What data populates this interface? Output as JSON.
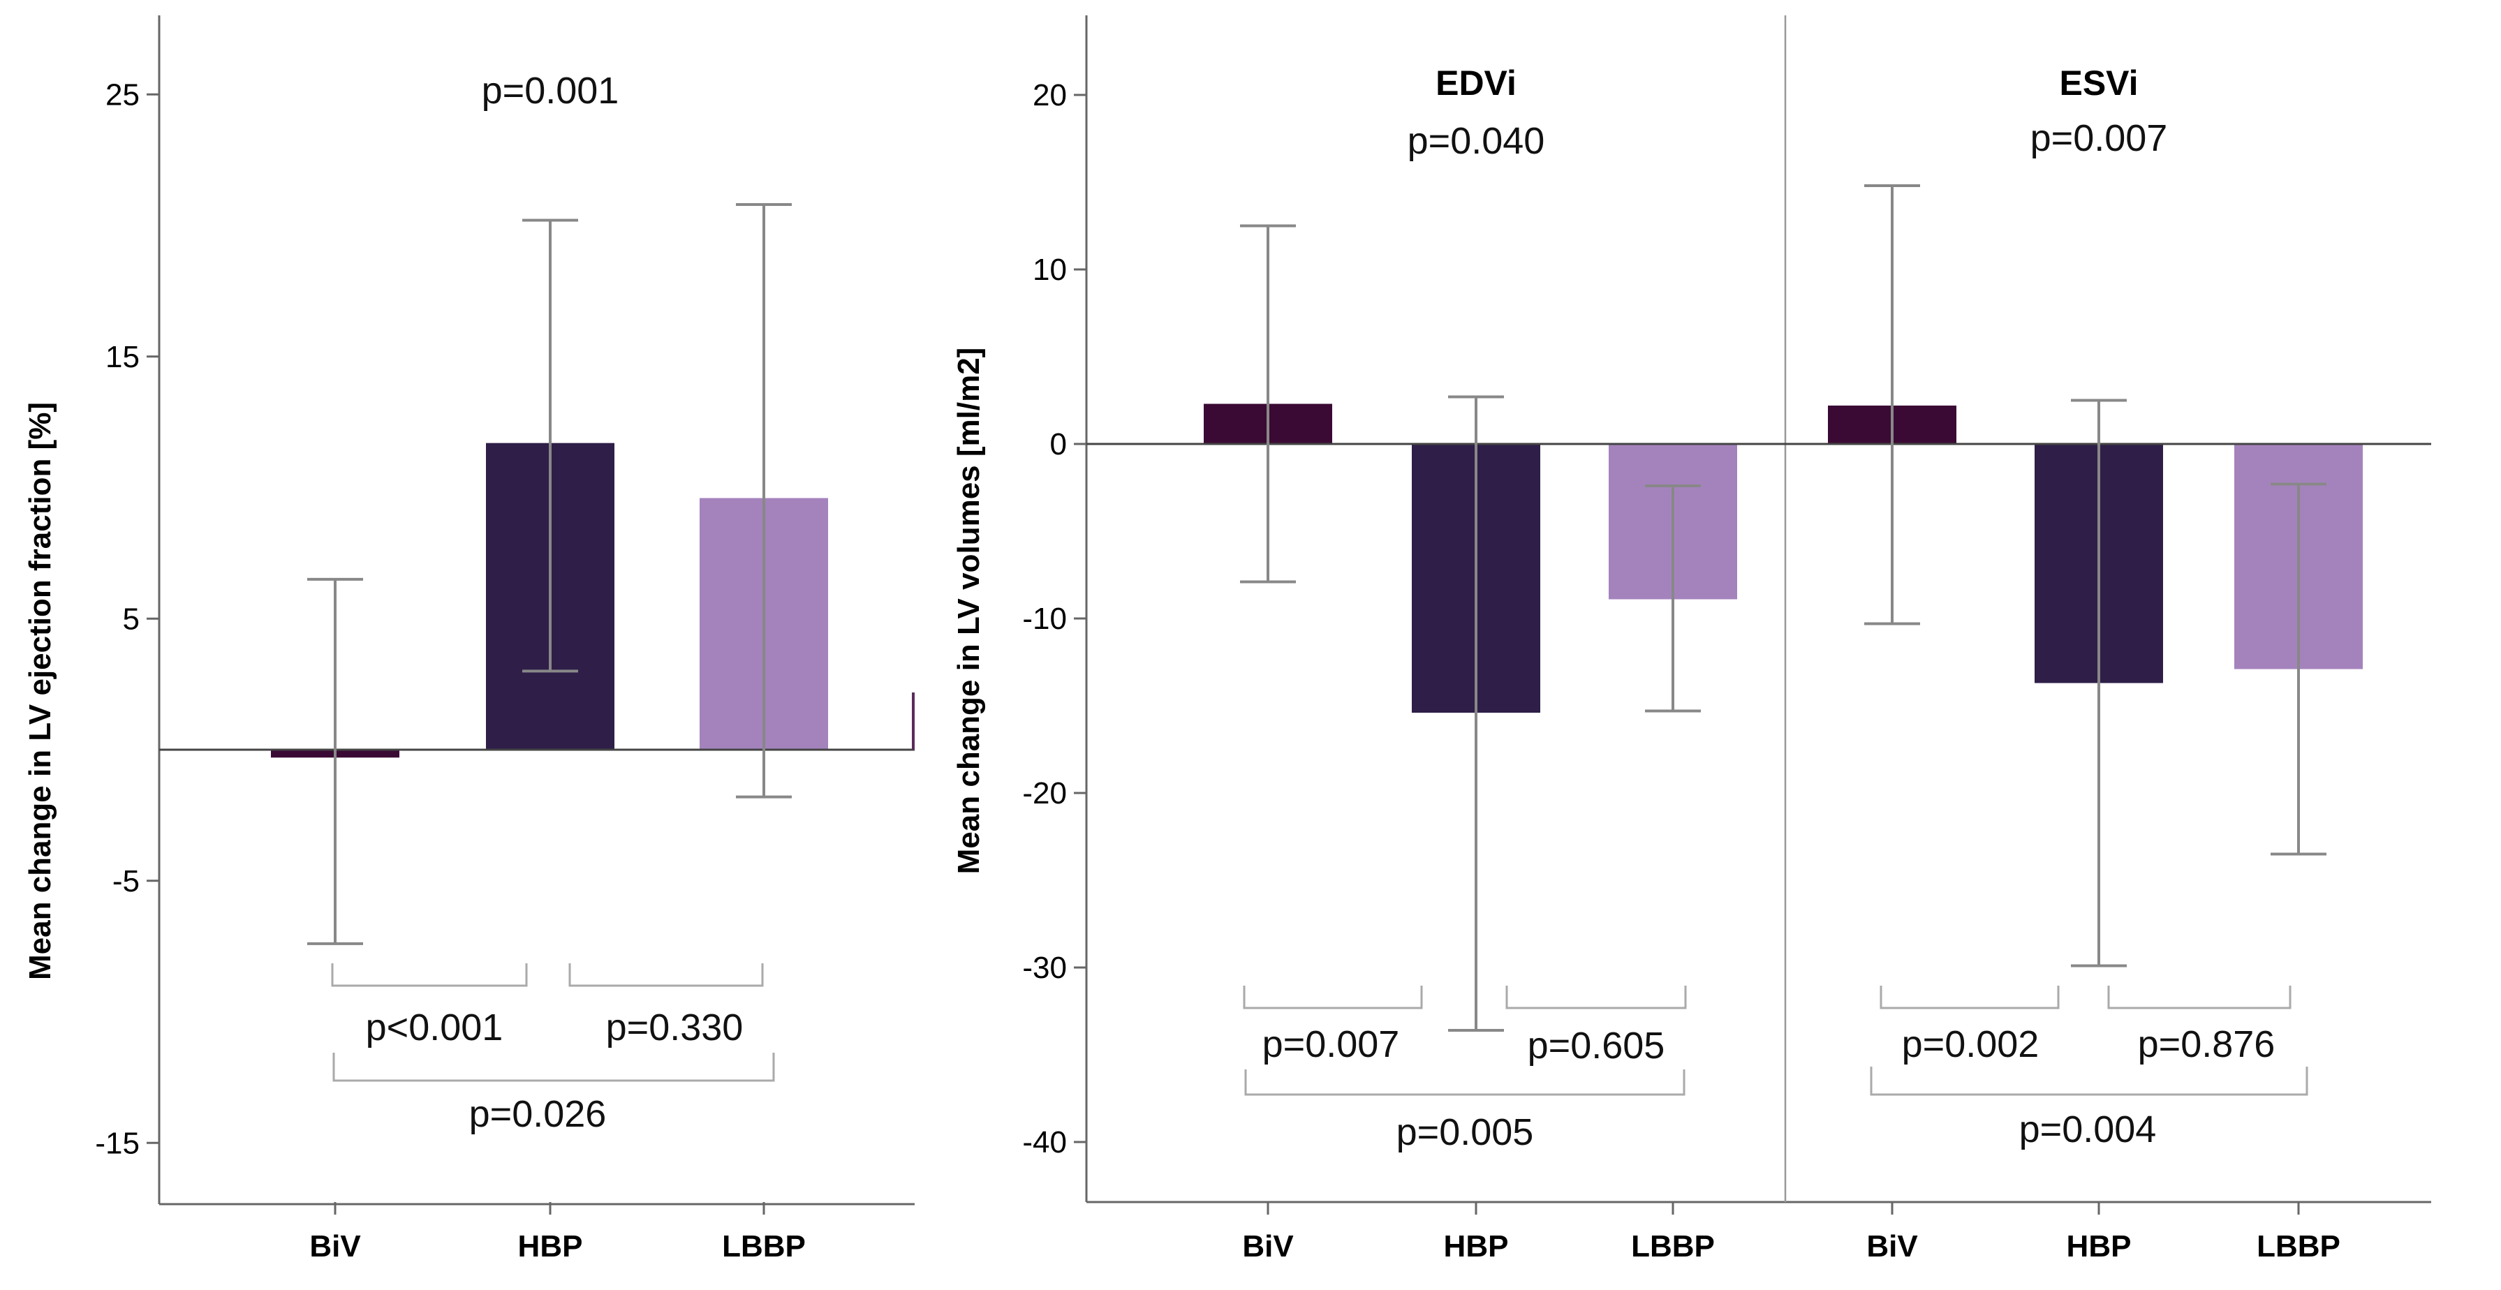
{
  "chart_data": [
    {
      "type": "bar",
      "categories": [
        "BiV",
        "HBP",
        "LBBP"
      ],
      "values": [
        -0.3,
        11.7,
        9.6
      ],
      "error_bars": [
        [
          -7.4,
          6.5
        ],
        [
          3.0,
          20.2
        ],
        [
          -1.8,
          20.8
        ]
      ],
      "colors": [
        "#3a0a34",
        "#2e1e48",
        "#a483bd"
      ],
      "ylabel": "Mean change in LV ejection fraction [%]",
      "ylim": [
        -17,
        27
      ],
      "yticks": [
        -15,
        -5,
        5,
        15,
        25
      ],
      "yticklabels": [
        "-15",
        "-5",
        "5",
        "15",
        "25"
      ],
      "annotations": {
        "overall": "p=0.001",
        "brackets": [
          {
            "label": "p<0.001"
          },
          {
            "label": "p=0.330"
          },
          {
            "label": "p=0.026"
          }
        ]
      }
    },
    {
      "type": "bar",
      "ylabel": "Mean change in LV volumes [ml/m2]",
      "ylim": [
        -43,
        23
      ],
      "yticks": [
        -40,
        -30,
        -20,
        -10,
        0,
        10,
        20
      ],
      "yticklabels": [
        "-40",
        "-30",
        "-20",
        "-10",
        "0",
        "10",
        "20"
      ],
      "colors": [
        "#3a0a34",
        "#2e1e48",
        "#a483bd"
      ],
      "panels": [
        {
          "title": "EDVi",
          "categories": [
            "BiV",
            "HBP",
            "LBBP"
          ],
          "values": [
            2.3,
            -15.4,
            -8.9
          ],
          "error_bars": [
            [
              -7.9,
              12.5
            ],
            [
              -33.6,
              2.7
            ],
            [
              -15.3,
              -2.4
            ]
          ],
          "overall": "p=0.040",
          "brackets": [
            {
              "label": "p=0.007"
            },
            {
              "label": "p=0.605"
            },
            {
              "label": "p=0.005"
            }
          ]
        },
        {
          "title": "ESVi",
          "categories": [
            "BiV",
            "HBP",
            "LBBP"
          ],
          "values": [
            2.2,
            -13.7,
            -12.9
          ],
          "error_bars": [
            [
              -10.3,
              14.8
            ],
            [
              -29.9,
              2.5
            ],
            [
              -23.5,
              -2.3
            ]
          ],
          "overall": "p=0.007",
          "brackets": [
            {
              "label": "p=0.002"
            },
            {
              "label": "p=0.876"
            },
            {
              "label": "p=0.004"
            }
          ]
        }
      ]
    }
  ]
}
